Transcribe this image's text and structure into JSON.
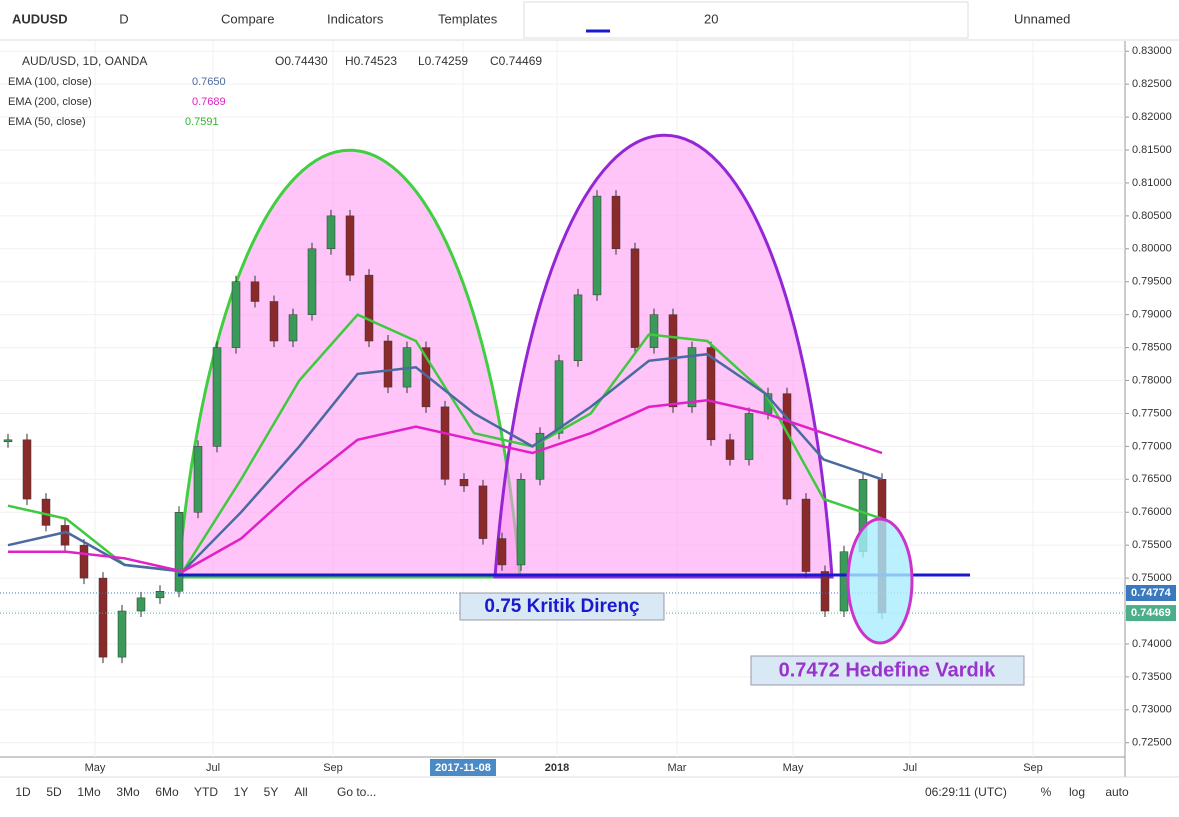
{
  "toolbar": {
    "symbol": "AUDUSD",
    "interval": "D",
    "items": [
      "Compare",
      "Indicators",
      "Templates"
    ],
    "size": "20",
    "layout": "Unnamed"
  },
  "legend": {
    "title": "AUD/USD, 1D, OANDA",
    "ohlc": [
      "O0.74430",
      "H0.74523",
      "L0.74259",
      "C0.74469"
    ],
    "indicators": [
      {
        "name": "EMA (100, close)",
        "value": "0.7650"
      },
      {
        "name": "EMA (200, close)",
        "value": "0.7689"
      },
      {
        "name": "EMA (50, close)",
        "value": "0.7591"
      }
    ]
  },
  "annotations": [
    "0.75 Kritik Direnç",
    "0.7472 Hedefine Vardık"
  ],
  "chart_data": {
    "type": "candlestick",
    "ylim": [
      0.7198,
      0.8314
    ],
    "yticks": [
      {
        "value": 0.83,
        "label": "0.83000"
      },
      {
        "value": 0.825,
        "label": "0.82500"
      },
      {
        "value": 0.82,
        "label": "0.82000"
      },
      {
        "value": 0.815,
        "label": "0.81500"
      },
      {
        "value": 0.81,
        "label": "0.81000"
      },
      {
        "value": 0.805,
        "label": "0.80500"
      },
      {
        "value": 0.8,
        "label": "0.80000"
      },
      {
        "value": 0.795,
        "label": "0.79500"
      },
      {
        "value": 0.79,
        "label": "0.79000"
      },
      {
        "value": 0.785,
        "label": "0.78500"
      },
      {
        "value": 0.78,
        "label": "0.78000"
      },
      {
        "value": 0.775,
        "label": "0.77500"
      },
      {
        "value": 0.77,
        "label": "0.77000"
      },
      {
        "value": 0.765,
        "label": "0.76500"
      },
      {
        "value": 0.76,
        "label": "0.76000"
      },
      {
        "value": 0.755,
        "label": "0.75500"
      },
      {
        "value": 0.75,
        "label": "0.75000"
      },
      {
        "value": 0.745,
        "label": "0.74500"
      },
      {
        "value": 0.74,
        "label": "0.74000"
      },
      {
        "value": 0.735,
        "label": "0.73500"
      },
      {
        "value": 0.73,
        "label": "0.73000"
      },
      {
        "value": 0.725,
        "label": "0.72500"
      }
    ],
    "xticks": [
      "May",
      "Jul",
      "Sep",
      "2017-11-08",
      "2018",
      "Mar",
      "May",
      "Jul",
      "Sep"
    ],
    "close": [
      0.771,
      0.762,
      0.758,
      0.755,
      0.75,
      0.738,
      0.745,
      0.747,
      0.748,
      0.76,
      0.77,
      0.785,
      0.795,
      0.792,
      0.786,
      0.79,
      0.8,
      0.805,
      0.796,
      0.786,
      0.779,
      0.785,
      0.776,
      0.765,
      0.764,
      0.756,
      0.752,
      0.765,
      0.772,
      0.783,
      0.793,
      0.808,
      0.8,
      0.785,
      0.79,
      0.776,
      0.785,
      0.771,
      0.768,
      0.775,
      0.778,
      0.762,
      0.751,
      0.745,
      0.754,
      0.765,
      0.7447
    ],
    "series": [
      {
        "name": "EMA (50, close)",
        "color": "#3fc93f",
        "values": [
          0.761,
          0.759,
          0.752,
          0.751,
          0.765,
          0.78,
          0.79,
          0.786,
          0.772,
          0.77,
          0.775,
          0.787,
          0.786,
          0.778,
          0.762,
          0.759
        ]
      },
      {
        "name": "EMA (100, close)",
        "color": "#4a6aa0",
        "values": [
          0.755,
          0.757,
          0.752,
          0.751,
          0.76,
          0.77,
          0.781,
          0.782,
          0.775,
          0.77,
          0.776,
          0.783,
          0.784,
          0.778,
          0.768,
          0.765
        ]
      },
      {
        "name": "EMA (200, close)",
        "color": "#e020c8",
        "values": [
          0.754,
          0.754,
          0.753,
          0.751,
          0.756,
          0.764,
          0.771,
          0.773,
          0.771,
          0.769,
          0.772,
          0.776,
          0.777,
          0.775,
          0.772,
          0.769
        ]
      }
    ],
    "price_labels": [
      {
        "value": 0.74774,
        "label": "0.74774",
        "color": "#3a78c0"
      },
      {
        "value": 0.74469,
        "label": "0.74469",
        "color": "#4caf8a"
      }
    ]
  },
  "bottombar": {
    "ranges": [
      "1D",
      "5D",
      "1Mo",
      "3Mo",
      "6Mo",
      "YTD",
      "1Y",
      "5Y",
      "All"
    ],
    "goto": "Go to...",
    "time": "06:29:11 (UTC)",
    "options": [
      "%",
      "log",
      "auto"
    ]
  }
}
